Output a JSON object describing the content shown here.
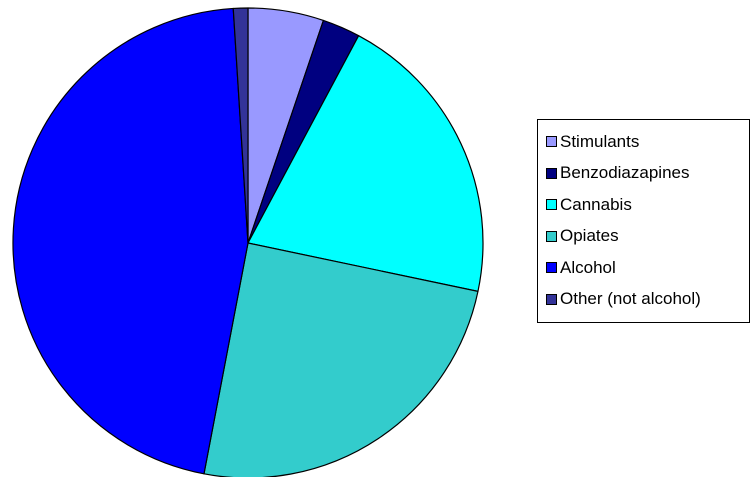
{
  "chart_data": {
    "type": "pie",
    "title": "",
    "start_angle_deg": 0,
    "direction": "clockwise",
    "slices": [
      {
        "label": "Stimulants",
        "value": 5.2,
        "color": "#9999ff"
      },
      {
        "label": "Benzodiazapines",
        "value": 2.6,
        "color": "#000080"
      },
      {
        "label": "Cannabis",
        "value": 20.5,
        "color": "#00ffff"
      },
      {
        "label": "Opiates",
        "value": 24.7,
        "color": "#33cccc"
      },
      {
        "label": "Alcohol",
        "value": 46.0,
        "color": "#0000ff"
      },
      {
        "label": "Other (not alcohol)",
        "value": 1.0,
        "color": "#333399"
      }
    ],
    "legend": {
      "position": "right"
    }
  }
}
